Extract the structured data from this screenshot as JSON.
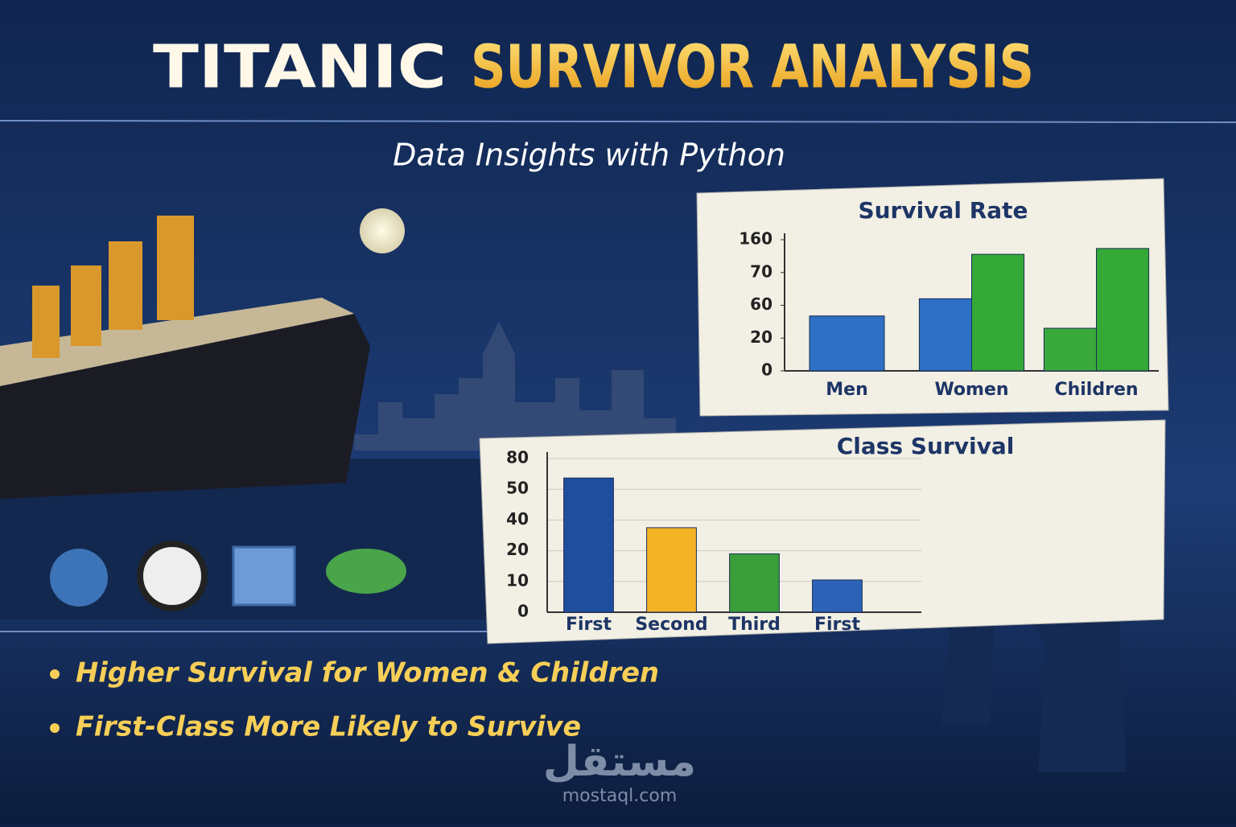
{
  "header": {
    "title_1": "TITANIC",
    "title_2": "SURVIVOR ANALYSIS",
    "subtitle": "Data Insights with Python"
  },
  "chart_data": [
    {
      "type": "bar",
      "title": "Survival Rate",
      "categories": [
        "Men",
        "Women",
        "Children"
      ],
      "series": [
        {
          "colors": [
            "#2f6fc6",
            "#2f6fc6",
            "#39a93b"
          ],
          "values": [
            47,
            62,
            32
          ]
        },
        {
          "color": "#35a937",
          "values": [
            null,
            120,
            136
          ]
        }
      ],
      "ylim": [
        0,
        160
      ],
      "yticks": [
        0,
        20,
        60,
        70,
        160
      ],
      "y_scale": "tick-interpolated",
      "grid": false
    },
    {
      "type": "bar",
      "title": "Class Survival",
      "categories": [
        "First",
        "Second",
        "Third",
        "First"
      ],
      "series": [
        {
          "colors": [
            "#1f4e9e",
            "#f4b225",
            "#3a9e3a",
            "#2c62b8"
          ],
          "values": [
            61,
            35,
            19,
            10.5
          ]
        }
      ],
      "ylim": [
        0,
        80
      ],
      "yticks": [
        0,
        10,
        20,
        40,
        50,
        80
      ],
      "y_scale": "tick-interpolated",
      "grid": true
    }
  ],
  "bullets": [
    "Higher Survival for Women & Children",
    "First-Class More Likely to Survive"
  ],
  "watermark": {
    "brand": "مستقل",
    "url": "mostaql.com"
  }
}
